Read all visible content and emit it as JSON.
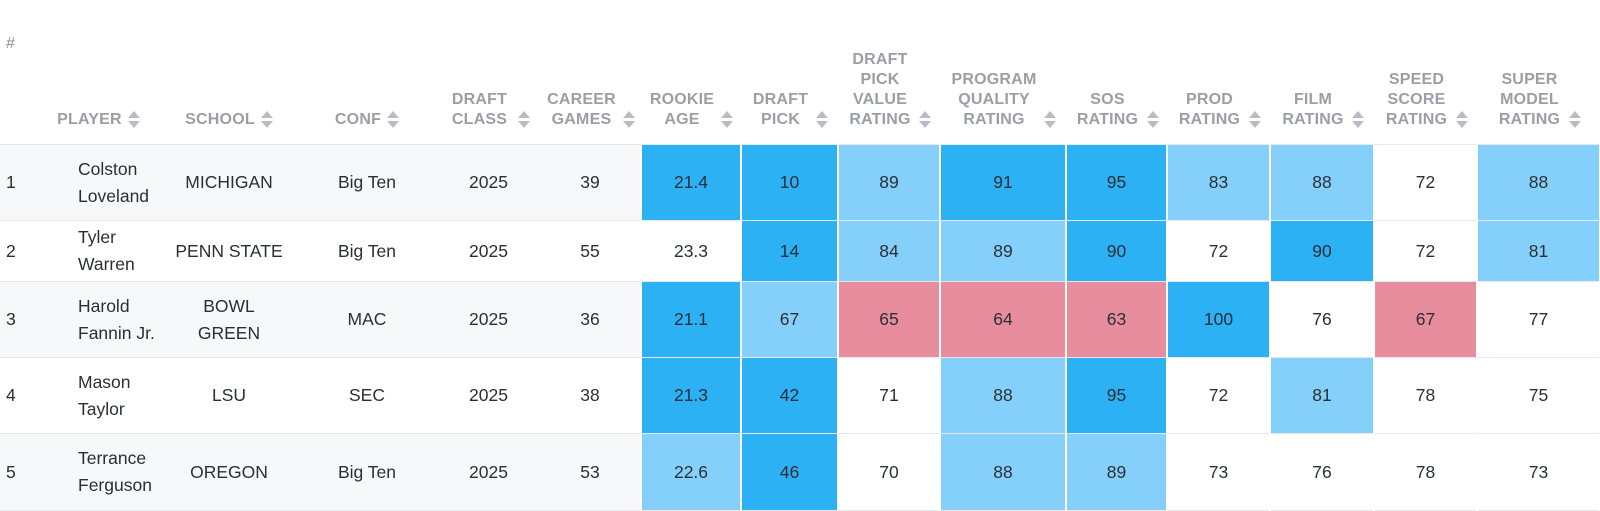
{
  "columns": [
    {
      "key": "rank",
      "label": "#"
    },
    {
      "key": "player",
      "label": "PLAYER"
    },
    {
      "key": "school",
      "label": "SCHOOL"
    },
    {
      "key": "conf",
      "label": "CONF"
    },
    {
      "key": "draft_class",
      "label": "DRAFT CLASS"
    },
    {
      "key": "career_games",
      "label": "CAREER GAMES"
    },
    {
      "key": "rookie_age",
      "label": "ROOKIE AGE"
    },
    {
      "key": "draft_pick",
      "label": "DRAFT PICK"
    },
    {
      "key": "dpv_rating",
      "label": "DRAFT PICK VALUE RATING"
    },
    {
      "key": "pq_rating",
      "label": "PROGRAM QUALITY RATING"
    },
    {
      "key": "sos_rating",
      "label": "SOS RATING"
    },
    {
      "key": "prod_rating",
      "label": "PROD RATING"
    },
    {
      "key": "film_rating",
      "label": "FILM RATING"
    },
    {
      "key": "speed_rating",
      "label": "SPEED SCORE RATING"
    },
    {
      "key": "super_rating",
      "label": "SUPER MODEL RATING"
    }
  ],
  "rows": [
    {
      "rank": "1",
      "player": "Colston Loveland",
      "school": "MICHIGAN",
      "conf": "Big Ten",
      "draft_class": "2025",
      "career_games": "39",
      "rookie_age": "21.4",
      "draft_pick": "10",
      "dpv_rating": "89",
      "pq_rating": "91",
      "sos_rating": "95",
      "prod_rating": "83",
      "film_rating": "88",
      "speed_rating": "72",
      "super_rating": "88",
      "shade": {
        "rookie_age": "high",
        "draft_pick": "high",
        "dpv_rating": "mid",
        "pq_rating": "high",
        "sos_rating": "high",
        "prod_rating": "mid",
        "film_rating": "mid",
        "speed_rating": "none",
        "super_rating": "mid"
      }
    },
    {
      "rank": "2",
      "player": "Tyler Warren",
      "school": "PENN STATE",
      "conf": "Big Ten",
      "draft_class": "2025",
      "career_games": "55",
      "rookie_age": "23.3",
      "draft_pick": "14",
      "dpv_rating": "84",
      "pq_rating": "89",
      "sos_rating": "90",
      "prod_rating": "72",
      "film_rating": "90",
      "speed_rating": "72",
      "super_rating": "81",
      "shade": {
        "rookie_age": "none",
        "draft_pick": "high",
        "dpv_rating": "mid",
        "pq_rating": "mid",
        "sos_rating": "high",
        "prod_rating": "none",
        "film_rating": "high",
        "speed_rating": "none",
        "super_rating": "mid"
      }
    },
    {
      "rank": "3",
      "player": "Harold Fannin Jr.",
      "school": "BOWL GREEN",
      "conf": "MAC",
      "draft_class": "2025",
      "career_games": "36",
      "rookie_age": "21.1",
      "draft_pick": "67",
      "dpv_rating": "65",
      "pq_rating": "64",
      "sos_rating": "63",
      "prod_rating": "100",
      "film_rating": "76",
      "speed_rating": "67",
      "super_rating": "77",
      "shade": {
        "rookie_age": "high",
        "draft_pick": "mid",
        "dpv_rating": "low",
        "pq_rating": "low",
        "sos_rating": "low",
        "prod_rating": "high",
        "film_rating": "none",
        "speed_rating": "low",
        "super_rating": "none"
      }
    },
    {
      "rank": "4",
      "player": "Mason Taylor",
      "school": "LSU",
      "conf": "SEC",
      "draft_class": "2025",
      "career_games": "38",
      "rookie_age": "21.3",
      "draft_pick": "42",
      "dpv_rating": "71",
      "pq_rating": "88",
      "sos_rating": "95",
      "prod_rating": "72",
      "film_rating": "81",
      "speed_rating": "78",
      "super_rating": "75",
      "shade": {
        "rookie_age": "high",
        "draft_pick": "high",
        "dpv_rating": "none",
        "pq_rating": "mid",
        "sos_rating": "high",
        "prod_rating": "none",
        "film_rating": "mid",
        "speed_rating": "none",
        "super_rating": "none"
      }
    },
    {
      "rank": "5",
      "player": "Terrance Ferguson",
      "school": "OREGON",
      "conf": "Big Ten",
      "draft_class": "2025",
      "career_games": "53",
      "rookie_age": "22.6",
      "draft_pick": "46",
      "dpv_rating": "70",
      "pq_rating": "88",
      "sos_rating": "89",
      "prod_rating": "73",
      "film_rating": "76",
      "speed_rating": "78",
      "super_rating": "73",
      "shade": {
        "rookie_age": "mid",
        "draft_pick": "high",
        "dpv_rating": "none",
        "pq_rating": "mid",
        "sos_rating": "mid",
        "prod_rating": "none",
        "film_rating": "none",
        "speed_rating": "none",
        "super_rating": "none"
      }
    }
  ],
  "colors": {
    "high": "#2db1f5",
    "mid": "#84d0fb",
    "low": "#e88d9e",
    "header_text": "#9a9fa6"
  },
  "icons": {
    "sort": "sort-arrows-icon"
  }
}
